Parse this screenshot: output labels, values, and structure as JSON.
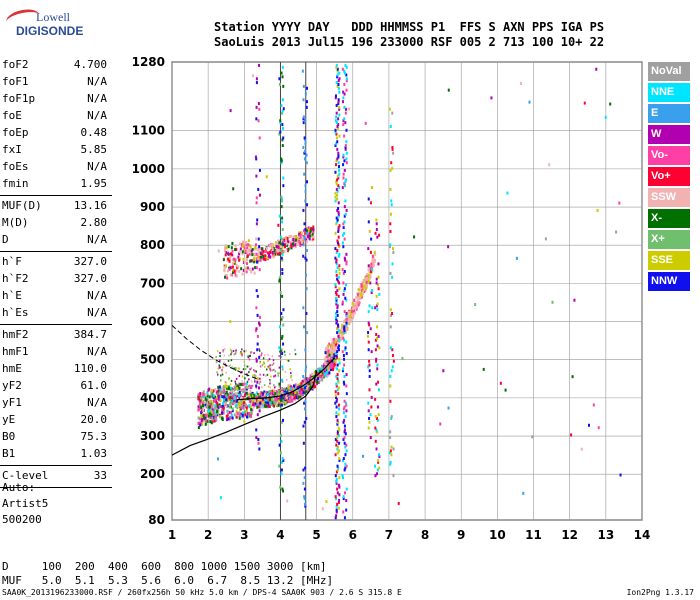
{
  "logo": {
    "line1": "Lowell",
    "line2": "DIGISONDE"
  },
  "header": {
    "line1": "Station YYYY DAY   DDD HHMMSS P1  FFS S AXN PPS IGA PS",
    "line2": "SaoLuis 2013 Jul15 196 233000 RSF 005 2 713 100 10+ 22"
  },
  "params": [
    [
      {
        "name": "foF2",
        "value": "4.700"
      },
      {
        "name": "foF1",
        "value": "N/A"
      },
      {
        "name": "foF1p",
        "value": "N/A"
      },
      {
        "name": "foE",
        "value": "N/A"
      },
      {
        "name": "foEp",
        "value": "0.48"
      },
      {
        "name": "fxI",
        "value": "5.85"
      },
      {
        "name": "foEs",
        "value": "N/A"
      },
      {
        "name": "fmin",
        "value": "1.95"
      }
    ],
    [
      {
        "name": "MUF(D)",
        "value": "13.16"
      },
      {
        "name": "M(D)",
        "value": "2.80"
      },
      {
        "name": "D",
        "value": "N/A"
      }
    ],
    [
      {
        "name": "h`F",
        "value": "327.0"
      },
      {
        "name": "h`F2",
        "value": "327.0"
      },
      {
        "name": "h`E",
        "value": "N/A"
      },
      {
        "name": "h`Es",
        "value": "N/A"
      }
    ],
    [
      {
        "name": "hmF2",
        "value": "384.7"
      },
      {
        "name": "hmF1",
        "value": "N/A"
      },
      {
        "name": "hmE",
        "value": "110.0"
      },
      {
        "name": "yF2",
        "value": "61.0"
      },
      {
        "name": "yF1",
        "value": "N/A"
      },
      {
        "name": "yE",
        "value": "20.0"
      },
      {
        "name": "B0",
        "value": "75.3"
      },
      {
        "name": "B1",
        "value": "1.03"
      }
    ],
    [
      {
        "name": "C-level",
        "value": "33"
      }
    ]
  ],
  "auto": {
    "line1": "Auto:",
    "line2": "Artist5",
    "line3": "500200"
  },
  "legend": [
    {
      "label": "NoVal",
      "color": "#a0a0a0"
    },
    {
      "label": "NNE",
      "color": "#00e5ff"
    },
    {
      "label": "E",
      "color": "#3aa0ee"
    },
    {
      "label": "W",
      "color": "#b000b0"
    },
    {
      "label": "Vo-",
      "color": "#ff3fa6"
    },
    {
      "label": "Vo+",
      "color": "#ff0033"
    },
    {
      "label": "SSW",
      "color": "#f2b2b2"
    },
    {
      "label": "X-",
      "color": "#007000"
    },
    {
      "label": "X+",
      "color": "#6fbf6f"
    },
    {
      "label": "SSE",
      "color": "#cccc00"
    },
    {
      "label": "NNW",
      "color": "#1010ee"
    }
  ],
  "dmuf": {
    "line1": "D     100  200  400  600  800 1000 1500 3000 [km]",
    "line2": "MUF   5.0  5.1  5.3  5.6  6.0  6.7  8.5 13.2 [MHz]"
  },
  "footer": "SAA0K_2013196233000.RSF / 260fx256h 50 kHz 5.0 km / DPS-4 SAA0K 903 / 2.6 S 315.8 E",
  "version": "Ion2Png 1.3.17",
  "chart_data": {
    "type": "scatter",
    "xlim": [
      1,
      14
    ],
    "ylim": [
      80,
      1280
    ],
    "xticks": [
      "1",
      "2",
      "3",
      "4",
      "5",
      "6",
      "7",
      "8",
      "9",
      "10",
      "11",
      "12",
      "13",
      "14"
    ],
    "yticks": [
      "80",
      "200",
      "300",
      "400",
      "500",
      "600",
      "700",
      "800",
      "900",
      "1000",
      "1100",
      "1280"
    ],
    "grid": true,
    "legend_position": "right",
    "vertical_lines_x": [
      4.0,
      4.7
    ],
    "profile": [
      [
        1.0,
        250
      ],
      [
        1.5,
        275
      ],
      [
        2.0,
        292
      ],
      [
        2.5,
        310
      ],
      [
        3.0,
        330
      ],
      [
        3.5,
        350
      ],
      [
        4.0,
        368
      ],
      [
        4.4,
        385
      ],
      [
        4.7,
        405
      ],
      [
        4.9,
        430
      ],
      [
        5.0,
        470
      ]
    ],
    "dashed_profile": [
      [
        1.0,
        590
      ],
      [
        1.4,
        555
      ],
      [
        1.8,
        525
      ],
      [
        2.2,
        500
      ],
      [
        2.6,
        480
      ],
      [
        3.0,
        463
      ],
      [
        3.4,
        448
      ]
    ],
    "trace_center": [
      [
        1.7,
        370
      ],
      [
        2.0,
        382
      ],
      [
        2.4,
        390
      ],
      [
        2.8,
        395
      ],
      [
        3.2,
        398
      ],
      [
        3.6,
        400
      ],
      [
        4.0,
        405
      ],
      [
        4.3,
        415
      ],
      [
        4.6,
        430
      ],
      [
        4.9,
        450
      ],
      [
        5.2,
        475
      ],
      [
        5.5,
        505
      ]
    ],
    "upper_trace_center": [
      [
        2.4,
        760
      ],
      [
        3.0,
        770
      ],
      [
        3.5,
        780
      ],
      [
        4.0,
        800
      ],
      [
        4.5,
        820
      ],
      [
        4.9,
        838
      ]
    ],
    "steep_trace": [
      [
        5.2,
        510
      ],
      [
        5.4,
        535
      ],
      [
        5.6,
        560
      ],
      [
        5.8,
        600
      ],
      [
        6.0,
        640
      ],
      [
        6.2,
        680
      ],
      [
        6.4,
        720
      ],
      [
        6.6,
        780
      ]
    ]
  }
}
